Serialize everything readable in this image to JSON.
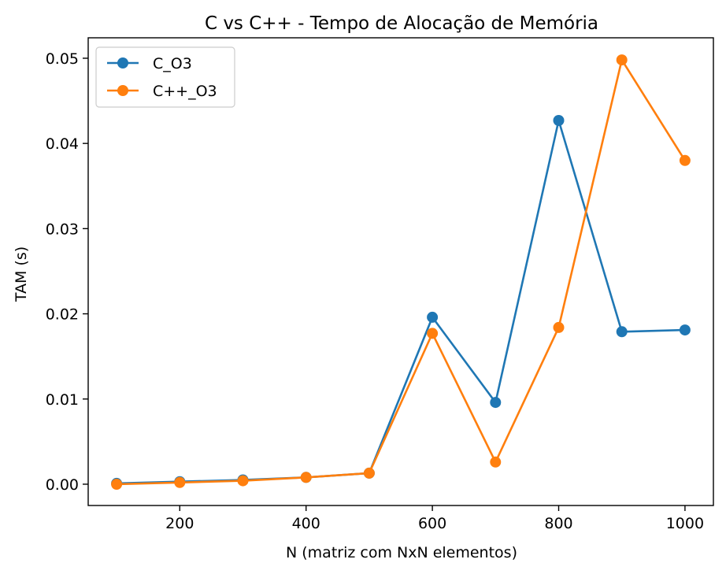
{
  "chart_data": {
    "type": "line",
    "title": "C vs C++ - Tempo de Alocação de Memória",
    "xlabel": "N (matriz com NxN elementos)",
    "ylabel": "TAM (s)",
    "x": [
      100,
      200,
      300,
      400,
      500,
      600,
      700,
      800,
      900,
      1000
    ],
    "xlim": [
      55,
      1045
    ],
    "ylim": [
      -0.0025,
      0.0524
    ],
    "xticks": [
      200,
      400,
      600,
      800,
      1000
    ],
    "xtick_labels": [
      "200",
      "400",
      "600",
      "800",
      "1000"
    ],
    "yticks": [
      0.0,
      0.01,
      0.02,
      0.03,
      0.04,
      0.05
    ],
    "ytick_labels": [
      "0.00",
      "0.01",
      "0.02",
      "0.03",
      "0.04",
      "0.05"
    ],
    "grid": false,
    "legend_position": "upper-left",
    "series": [
      {
        "name": "C_O3",
        "color": "#1f77b4",
        "marker": "circle",
        "values": [
          0.0001,
          0.0003,
          0.0005,
          0.0008,
          0.0013,
          0.0196,
          0.0096,
          0.0427,
          0.0179,
          0.0181
        ]
      },
      {
        "name": "C++_O3",
        "color": "#ff7f0e",
        "marker": "circle",
        "values": [
          0.0,
          0.0002,
          0.0004,
          0.0008,
          0.0013,
          0.0177,
          0.0026,
          0.0184,
          0.0498,
          0.038
        ]
      }
    ]
  }
}
